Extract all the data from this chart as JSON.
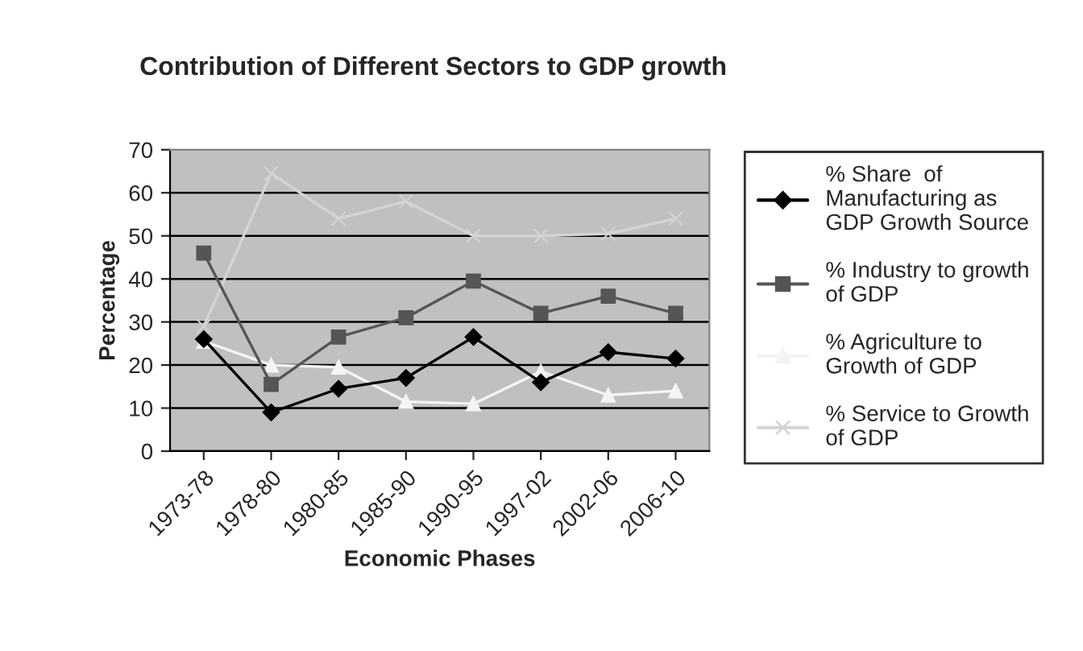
{
  "chart_data": {
    "type": "line",
    "title": "Contribution of Different Sectors to GDP growth",
    "xlabel": "Economic Phases",
    "ylabel": "Percentage",
    "categories": [
      "1973-78",
      "1978-80",
      "1980-85",
      "1985-90",
      "1990-95",
      "1997-02",
      "2002-06",
      "2006-10"
    ],
    "series": [
      {
        "name": "% Share  of\nManufacturing as\nGDP Growth Source",
        "color": "#000000",
        "marker": "diamond",
        "values": [
          26,
          9,
          14.5,
          17,
          26.5,
          16,
          23,
          21.5
        ]
      },
      {
        "name": "% Industry to growth\nof GDP",
        "color": "#555555",
        "marker": "square",
        "values": [
          46,
          15.5,
          26.5,
          31,
          39.5,
          32,
          36,
          32
        ]
      },
      {
        "name": "% Agriculture to\nGrowth of GDP",
        "color": "#f4f4f4",
        "marker": "triangle",
        "values": [
          25.5,
          20,
          19.5,
          11.5,
          11,
          18.5,
          13,
          14
        ]
      },
      {
        "name": "% Service to Growth\nof GDP",
        "color": "#d4d4d4",
        "marker": "cross",
        "values": [
          29,
          64.5,
          54,
          58,
          50,
          50,
          50.5,
          54
        ]
      }
    ],
    "ylim": [
      0,
      70
    ],
    "yticks": [
      0,
      10,
      20,
      30,
      40,
      50,
      60,
      70
    ],
    "grid": "y",
    "legend": "right"
  }
}
